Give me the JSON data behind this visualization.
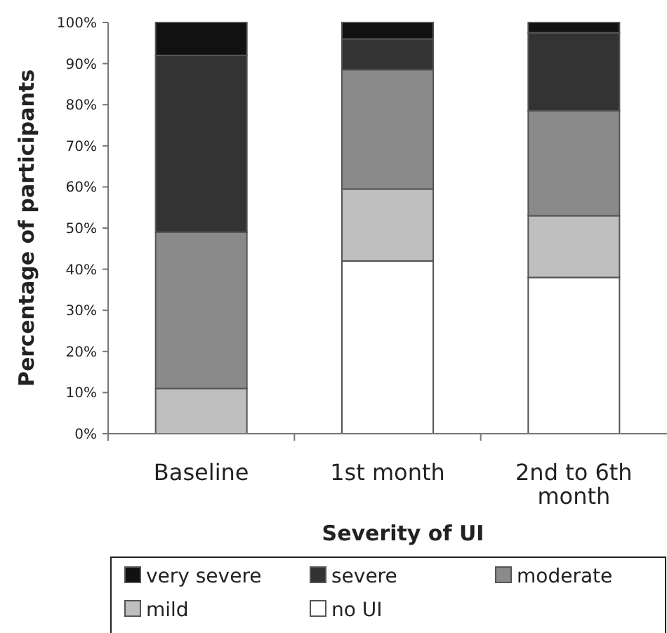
{
  "chart_data": {
    "type": "bar",
    "stacked": true,
    "xlabel": "Severity of UI",
    "ylabel": "Percentage of participants",
    "categories": [
      "Baseline",
      "1st month",
      "2nd to 6th month"
    ],
    "series": [
      {
        "name": "no UI",
        "color": "#ffffff",
        "values": [
          0,
          42,
          38
        ]
      },
      {
        "name": "mild",
        "color": "#bfbfbf",
        "values": [
          11,
          17.5,
          15
        ]
      },
      {
        "name": "moderate",
        "color": "#8a8a8a",
        "values": [
          38,
          29,
          25.5
        ]
      },
      {
        "name": "severe",
        "color": "#333333",
        "values": [
          43,
          7.5,
          19
        ]
      },
      {
        "name": "very severe",
        "color": "#111111",
        "values": [
          8,
          4,
          2.5
        ]
      }
    ],
    "ylim": [
      0,
      100
    ],
    "yticks": [
      {
        "value": 0,
        "label": "0%"
      },
      {
        "value": 10,
        "label": "10%"
      },
      {
        "value": 20,
        "label": "20%"
      },
      {
        "value": 30,
        "label": "30%"
      },
      {
        "value": 40,
        "label": "40%"
      },
      {
        "value": 50,
        "label": "50%"
      },
      {
        "value": 60,
        "label": "60%"
      },
      {
        "value": 70,
        "label": "70%"
      },
      {
        "value": 80,
        "label": "80%"
      },
      {
        "value": 90,
        "label": "90%"
      },
      {
        "value": 100,
        "label": "100%"
      }
    ],
    "grid": false,
    "legend": "bottom"
  }
}
